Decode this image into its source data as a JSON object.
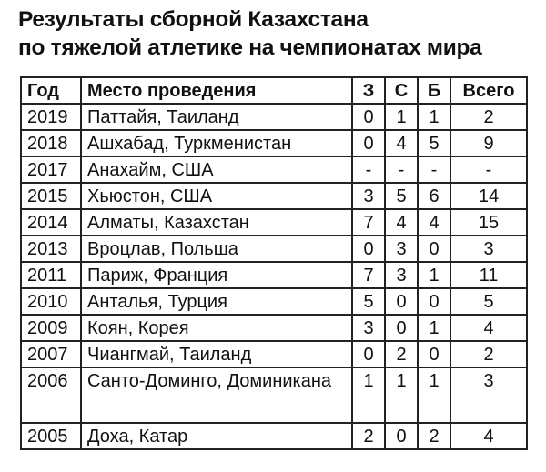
{
  "title": [
    "Результаты сборной Казахстана",
    "по тяжелой атлетике на чемпионатах мира"
  ],
  "headers": [
    "Год",
    "Место проведения",
    "З",
    "С",
    "Б",
    "Всего"
  ],
  "rows": [
    [
      "2019",
      "Паттайя, Таиланд",
      "0",
      "1",
      "1",
      "2"
    ],
    [
      "2018",
      "Ашхабад, Туркменистан",
      "0",
      "4",
      "5",
      "9"
    ],
    [
      "2017",
      "Анахайм, США",
      "-",
      "-",
      "-",
      "-"
    ],
    [
      "2015",
      "Хьюстон, США",
      "3",
      "5",
      "6",
      "14"
    ],
    [
      "2014",
      "Алматы, Казахстан",
      "7",
      "4",
      "4",
      "15"
    ],
    [
      "2013",
      "Вроцлав, Польша",
      "0",
      "3",
      "0",
      "3"
    ],
    [
      "2011",
      "Париж, Франция",
      "7",
      "3",
      "1",
      "11"
    ],
    [
      "2010",
      "Анталья, Турция",
      "5",
      "0",
      "0",
      "5"
    ],
    [
      "2009",
      "Коян, Корея",
      "3",
      "0",
      "1",
      "4"
    ],
    [
      "2007",
      "Чиангмай, Таиланд",
      "0",
      "2",
      "0",
      "2"
    ],
    [
      "2006",
      "Санто-Доминго, Доминикана",
      "1",
      "1",
      "1",
      "3"
    ],
    [
      "2005",
      "Доха, Катар",
      "2",
      "0",
      "2",
      "4"
    ]
  ]
}
